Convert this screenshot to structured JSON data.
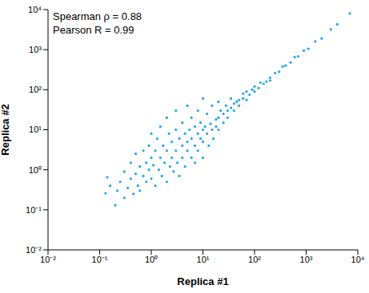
{
  "chart_data": {
    "type": "scatter",
    "annotations": [
      "Spearman ρ = 0.88",
      "Pearson R = 0.99"
    ],
    "x_label": "Replica #1",
    "y_label": "Replica #2",
    "log": true,
    "grid": false,
    "color": "#1ea5f0",
    "marker": "circle",
    "xlim": [
      0.01,
      10000
    ],
    "ylim": [
      0.01,
      10000
    ],
    "xticks": [
      {
        "value": 0.01,
        "label": "10⁻²"
      },
      {
        "value": 0.1,
        "label": "10⁻¹"
      },
      {
        "value": 1,
        "label": "10⁰"
      },
      {
        "value": 10,
        "label": "10¹"
      },
      {
        "value": 100,
        "label": "10²"
      },
      {
        "value": 1000,
        "label": "10³"
      },
      {
        "value": 10000,
        "label": "10⁴"
      }
    ],
    "yticks": [
      {
        "value": 0.01,
        "label": "10⁻²"
      },
      {
        "value": 0.1,
        "label": "10⁻¹"
      },
      {
        "value": 1,
        "label": "10⁰"
      },
      {
        "value": 10,
        "label": "10¹"
      },
      {
        "value": 100,
        "label": "10²"
      },
      {
        "value": 1000,
        "label": "10³"
      },
      {
        "value": 10000,
        "label": "10⁴"
      }
    ],
    "x": [
      0.13,
      0.14,
      0.16,
      0.2,
      0.22,
      0.25,
      0.3,
      0.3,
      0.35,
      0.4,
      0.4,
      0.45,
      0.5,
      0.5,
      0.55,
      0.6,
      0.6,
      0.7,
      0.7,
      0.8,
      0.8,
      0.9,
      0.9,
      1,
      1,
      1,
      1.1,
      1.2,
      1.2,
      1.3,
      1.4,
      1.5,
      1.5,
      1.6,
      1.7,
      1.8,
      2,
      2,
      2,
      2.2,
      2.3,
      2.5,
      2.5,
      2.7,
      3,
      3,
      3,
      3.2,
      3.5,
      3.5,
      4,
      4,
      4,
      4.5,
      4.5,
      5,
      5,
      5,
      5.5,
      6,
      6,
      6,
      7,
      7,
      7,
      8,
      8,
      8,
      9,
      9,
      10,
      10,
      10,
      10,
      11,
      12,
      12,
      13,
      14,
      15,
      15,
      16,
      18,
      18,
      20,
      20,
      20,
      22,
      25,
      25,
      28,
      30,
      30,
      35,
      35,
      40,
      40,
      45,
      50,
      50,
      60,
      60,
      70,
      70,
      80,
      90,
      100,
      100,
      120,
      130,
      150,
      170,
      200,
      200,
      250,
      300,
      350,
      400,
      500,
      600,
      700,
      900,
      1100,
      1500,
      2000,
      3000,
      4000,
      7000
    ],
    "values": [
      0.26,
      0.65,
      0.4,
      0.13,
      0.3,
      0.5,
      0.9,
      0.2,
      0.35,
      1.5,
      0.6,
      0.25,
      0.8,
      2.5,
      0.4,
      1.2,
      0.3,
      3,
      0.7,
      1.5,
      0.5,
      4,
      1,
      0.6,
      2,
      8,
      1.3,
      0.4,
      3,
      6,
      1,
      2,
      12,
      0.7,
      4,
      1.5,
      3,
      0.5,
      20,
      8,
      1.2,
      5,
      2,
      0.9,
      3,
      10,
      30,
      1.5,
      6,
      0.7,
      4,
      2,
      15,
      8,
      1.2,
      5,
      3,
      40,
      10,
      2,
      6,
      20,
      4,
      12,
      1.5,
      8,
      3,
      30,
      6,
      15,
      10,
      5,
      2,
      60,
      12,
      8,
      25,
      4,
      14,
      10,
      40,
      6,
      18,
      12,
      20,
      10,
      50,
      30,
      25,
      15,
      40,
      20,
      30,
      35,
      60,
      30,
      45,
      50,
      40,
      55,
      60,
      80,
      55,
      90,
      75,
      100,
      90,
      120,
      110,
      150,
      140,
      160,
      200,
      170,
      260,
      280,
      380,
      400,
      480,
      650,
      680,
      950,
      1050,
      1600,
      1900,
      3200,
      4300,
      8000
    ]
  }
}
